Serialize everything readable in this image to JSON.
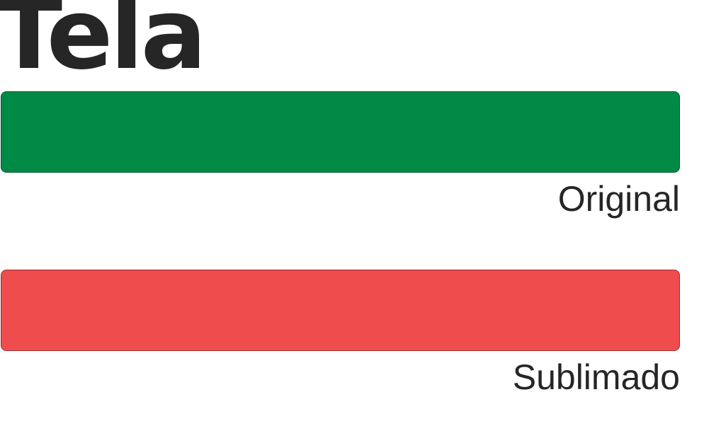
{
  "title": "Tela",
  "swatches": [
    {
      "label": "Original",
      "color": "#008a45"
    },
    {
      "label": "Sublimado",
      "color": "#ef4c4d"
    }
  ]
}
